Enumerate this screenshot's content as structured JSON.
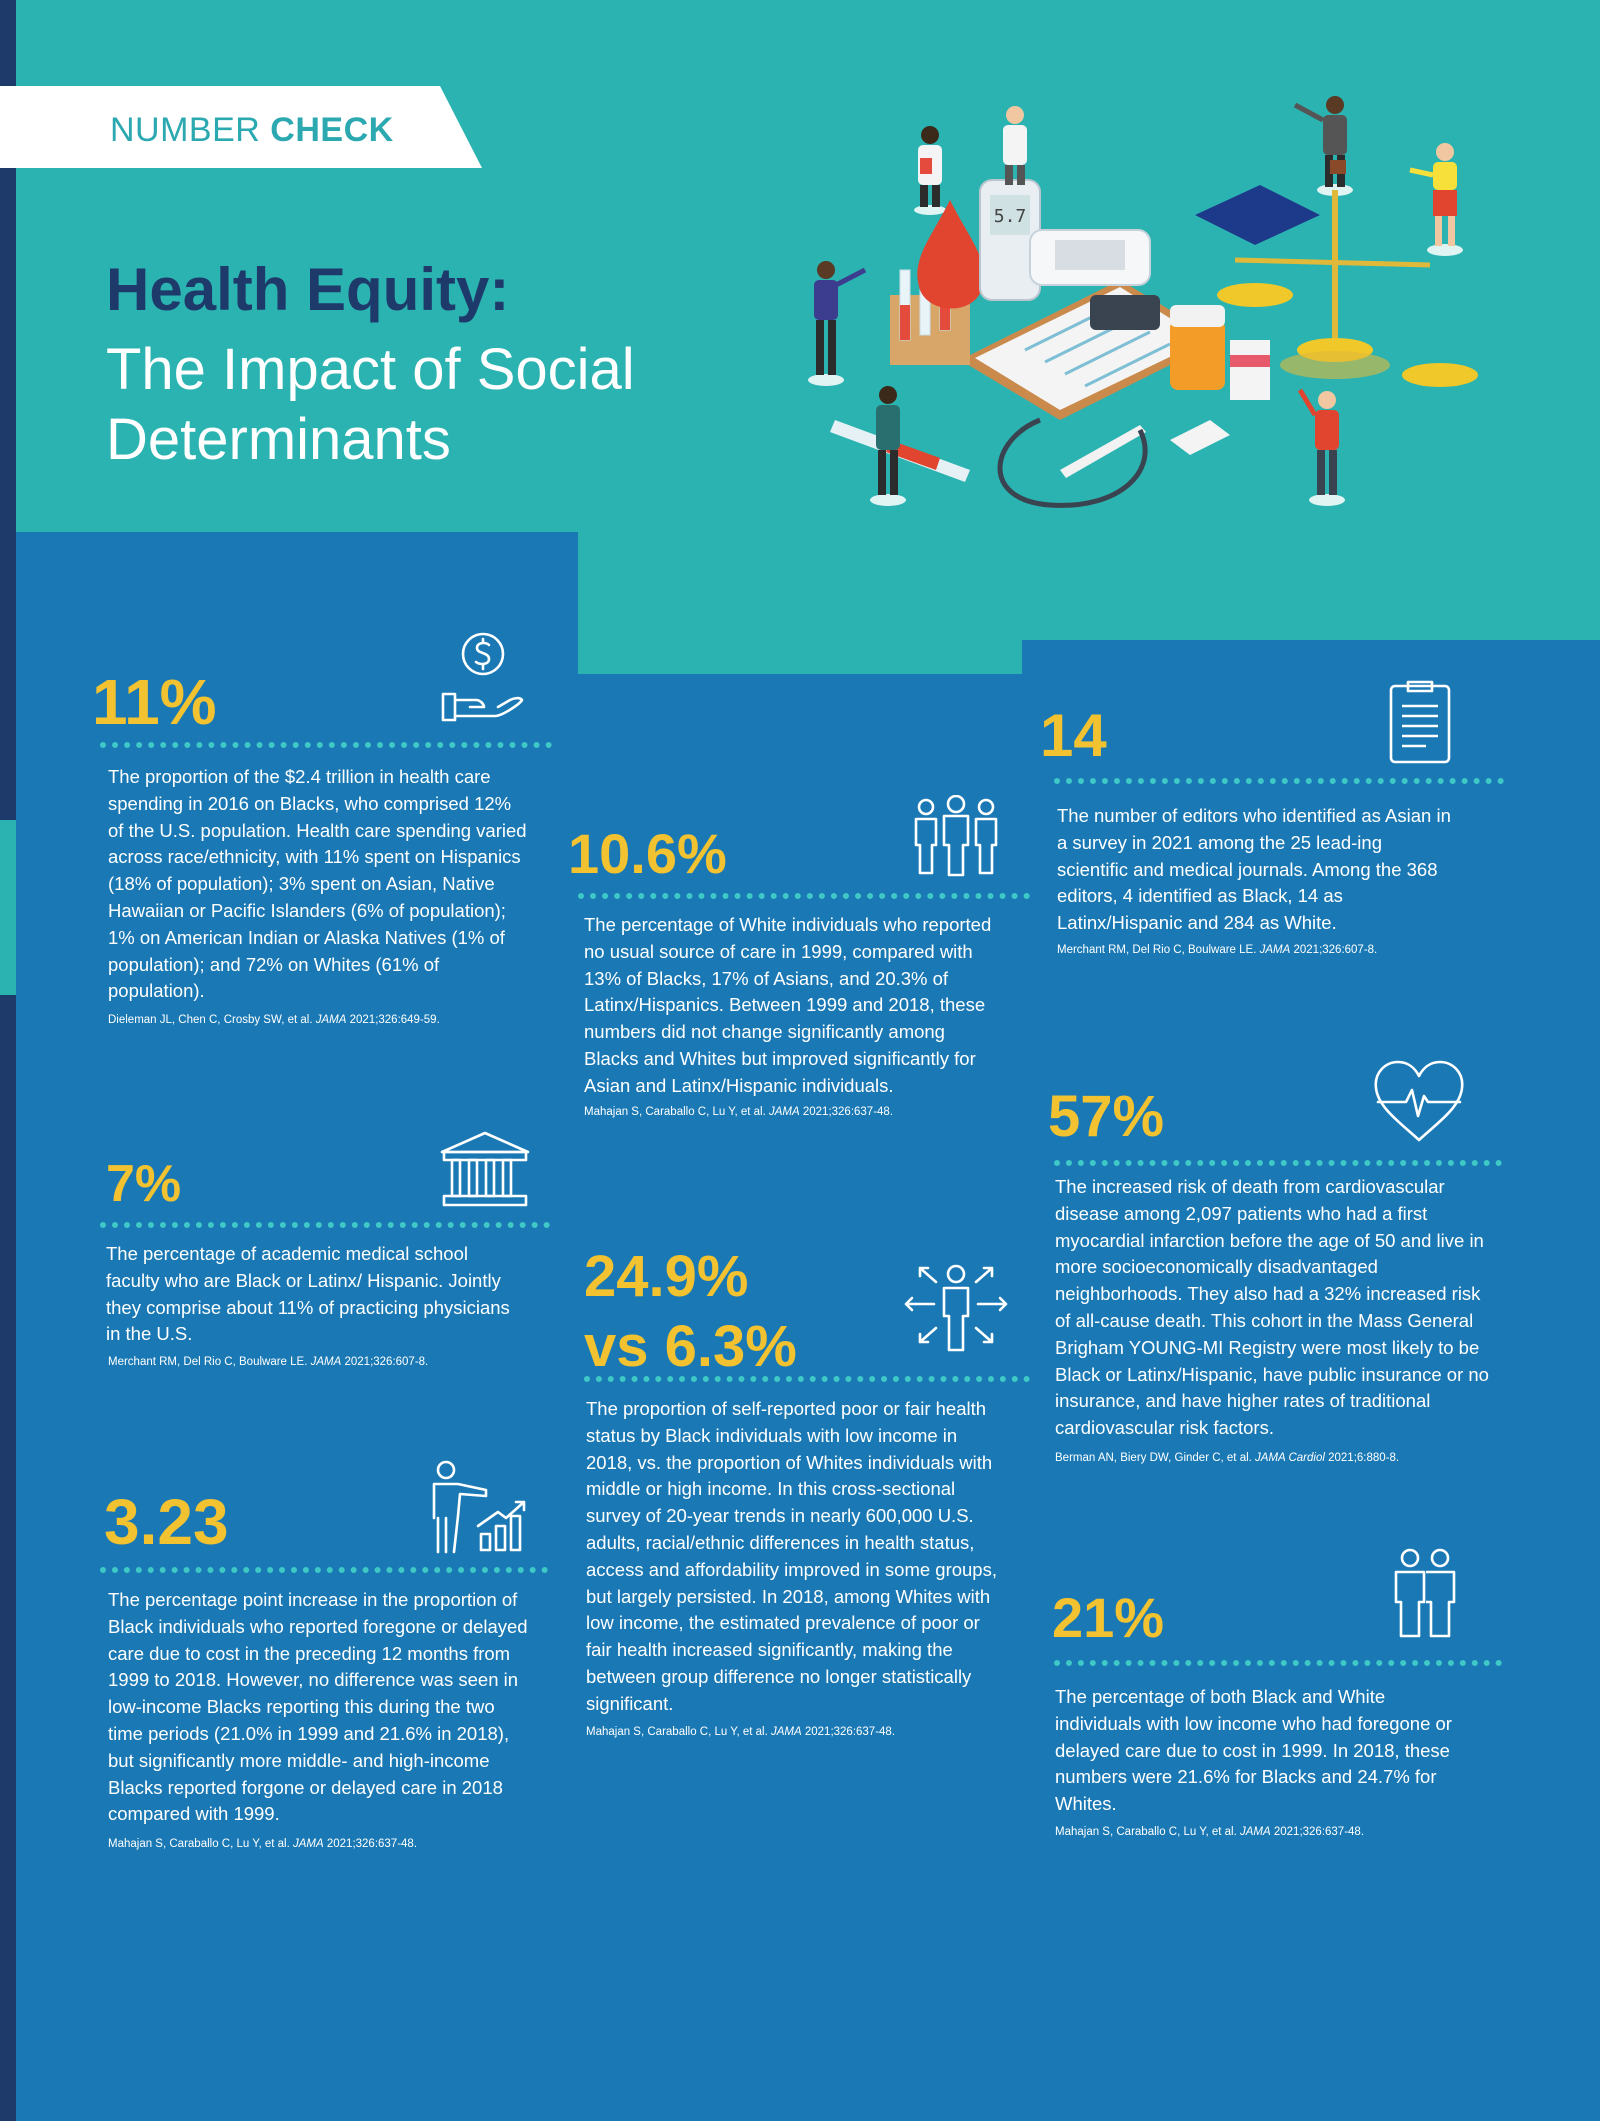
{
  "header": {
    "banner_prefix": "NUMBER",
    "banner_bold": "CHECK",
    "title_line1": "Health Equity:",
    "title_line2": "The Impact of Social Determinants"
  },
  "stats": [
    {
      "value": "11%",
      "icon": "money-hand-icon",
      "text": "The proportion of the $2.4 trillion in health care spending in 2016 on Blacks, who comprised 12% of the U.S. population. Health care spending varied across race/ethnicity, with 11% spent on Hispanics (18% of population); 3% spent on Asian, Native Hawaiian or Pacific Islanders (6% of population); 1% on American Indian or Alaska Natives (1% of population); and 72% on Whites (61% of population).",
      "cite_authors": "Dieleman JL, Chen C, Crosby SW, et al.",
      "cite_journal": "JAMA",
      "cite_ref": "2021;326:649-59."
    },
    {
      "value": "10.6%",
      "icon": "group-people-icon",
      "text": "The percentage of White individuals who reported no usual source of care in 1999, compared with 13% of Blacks, 17% of Asians, and 20.3% of Latinx/Hispanics. Between 1999 and 2018, these numbers did not change significantly among Blacks and Whites but improved significantly for Asian and Latinx/Hispanic individuals.",
      "cite_authors": "Mahajan S, Caraballo C, Lu Y, et al.",
      "cite_journal": "JAMA",
      "cite_ref": "2021;326:637-48."
    },
    {
      "value": "14",
      "icon": "document-icon",
      "text": "The number of editors who identified as Asian in a survey in 2021 among the 25 lead-ing scientific and medical journals. Among the 368 editors, 4 identified as Black, 14 as Latinx/Hispanic and 284 as White.",
      "cite_authors": "Merchant RM, Del Rio C, Boulware LE.",
      "cite_journal": "JAMA",
      "cite_ref": "2021;326:607-8."
    },
    {
      "value": "7%",
      "icon": "institution-icon",
      "text": "The percentage of academic medical school faculty who are Black or Latinx/ Hispanic. Jointly they comprise about 11% of practicing physicians in the U.S.",
      "cite_authors": "Merchant RM, Del Rio C, Boulware LE.",
      "cite_journal": "JAMA",
      "cite_ref": "2021;326:607-8."
    },
    {
      "value_line1": "24.9%",
      "value_line2": "vs 6.3%",
      "icon": "person-arrows-icon",
      "text": "The proportion of self-reported poor or fair health status by Black individuals with low income in 2018, vs. the proportion of Whites individuals with middle or high income. In this cross-sectional survey of 20-year trends in nearly 600,000 U.S. adults, racial/ethnic differences in health status, access and affordability improved in some groups, but largely persisted. In 2018, among Whites with low income, the estimated prevalence of poor or fair health increased significantly, making the between group difference no longer statistically significant.",
      "cite_authors": "Mahajan S, Caraballo C, Lu Y, et al.",
      "cite_journal": "JAMA",
      "cite_ref": "2021;326:637-48."
    },
    {
      "value": "57%",
      "icon": "heart-pulse-icon",
      "text": "The increased risk of death from cardiovascular disease among 2,097 patients who had a first myocardial infarction before the age of 50 and live in more socioeconomically disadvantaged neighborhoods. They also had a 32% increased risk of all-cause death. This cohort in the Mass General Brigham YOUNG-MI Registry were most likely to be Black or Latinx/Hispanic, have public insurance or no insurance, and have higher rates of traditional cardiovascular risk factors.",
      "cite_authors": "Berman AN, Biery DW, Ginder C, et al.",
      "cite_journal": "JAMA Cardiol",
      "cite_ref": "2021;6:880-8."
    },
    {
      "value": "3.23",
      "icon": "presenter-chart-icon",
      "text": "The percentage point increase in the proportion of Black individuals who reported foregone or delayed care due to cost in the preceding 12 months from 1999 to 2018. However, no difference was seen in low-income Blacks reporting this during the two time periods (21.0% in 1999 and 21.6% in 2018), but significantly more middle- and high-income Blacks reported forgone or delayed care in 2018 compared with 1999.",
      "cite_authors": "Mahajan S, Caraballo C, Lu Y, et al.",
      "cite_journal": "JAMA",
      "cite_ref": "2021;326:637-48."
    },
    {
      "value": "21%",
      "icon": "two-people-icon",
      "text": "The percentage of both Black and White individuals with low income who had foregone or delayed care due to cost in 1999. In 2018, these numbers were 21.6% for Blacks and 24.7% for Whites.",
      "cite_authors": "Mahajan S, Caraballo C, Lu Y, et al.",
      "cite_journal": "JAMA",
      "cite_ref": "2021;326:637-48."
    }
  ],
  "illustration": {
    "icon": "healthcare-equity-illustration",
    "glucometer_reading": "5.7"
  },
  "colors": {
    "teal": "#2bb3b1",
    "blue": "#1a79b5",
    "navy": "#1d3a6b",
    "yellow": "#f2c230",
    "dots": "#3ec8c6"
  }
}
